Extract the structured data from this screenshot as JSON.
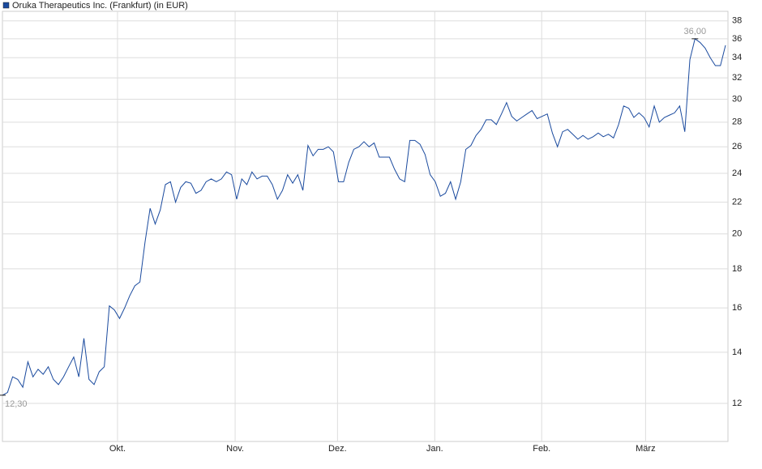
{
  "chart_data": {
    "type": "line",
    "series": [
      {
        "name": "Oruka Therapeutics Inc. (Frankfurt) (in EUR)",
        "color": "#1a4a9e",
        "values": [
          12.3,
          12.4,
          13.0,
          12.9,
          12.6,
          13.6,
          13.0,
          13.3,
          13.1,
          13.4,
          12.9,
          12.7,
          13.0,
          13.4,
          13.8,
          13.0,
          14.6,
          12.9,
          12.7,
          13.2,
          13.4,
          16.1,
          15.9,
          15.5,
          16.0,
          16.6,
          17.1,
          17.3,
          19.5,
          21.6,
          20.6,
          21.5,
          23.2,
          23.4,
          22.0,
          23.0,
          23.4,
          23.3,
          22.6,
          22.8,
          23.4,
          23.6,
          23.4,
          23.6,
          24.1,
          23.9,
          22.2,
          23.6,
          23.2,
          24.1,
          23.6,
          23.8,
          23.8,
          23.2,
          22.2,
          22.8,
          23.9,
          23.3,
          23.9,
          22.8,
          26.1,
          25.3,
          25.8,
          25.8,
          26.0,
          25.6,
          23.4,
          23.4,
          24.8,
          25.8,
          26.0,
          26.4,
          26.0,
          26.3,
          25.2,
          25.2,
          25.2,
          24.3,
          23.6,
          23.4,
          26.5,
          26.5,
          26.2,
          25.4,
          23.9,
          23.4,
          22.4,
          22.6,
          23.4,
          22.2,
          23.4,
          25.8,
          26.1,
          26.9,
          27.4,
          28.2,
          28.2,
          27.8,
          28.7,
          29.7,
          28.5,
          28.1,
          28.4,
          28.7,
          29.0,
          28.3,
          28.5,
          28.7,
          27.1,
          26.0,
          27.2,
          27.4,
          27.0,
          26.6,
          26.9,
          26.6,
          26.8,
          27.1,
          26.8,
          27.0,
          26.7,
          27.8,
          29.4,
          29.2,
          28.4,
          28.8,
          28.4,
          27.6,
          29.4,
          28.0,
          28.4,
          28.6,
          28.8,
          29.4,
          27.2,
          33.8,
          36.0,
          35.6,
          35.0,
          34.0,
          33.2,
          33.2,
          35.3
        ]
      }
    ],
    "xlim": [
      0,
      142
    ],
    "xticks": [
      {
        "value": 22.6,
        "label": "Okt."
      },
      {
        "value": 45.7,
        "label": "Nov."
      },
      {
        "value": 65.8,
        "label": "Dez."
      },
      {
        "value": 84.9,
        "label": "Jan."
      },
      {
        "value": 105.9,
        "label": "Feb."
      },
      {
        "value": 126.3,
        "label": "März"
      }
    ],
    "ylim": [
      10.7,
      39.1
    ],
    "yticks": [
      12,
      14,
      16,
      18,
      20,
      22,
      24,
      26,
      28,
      30,
      32,
      34,
      36,
      38
    ],
    "log_y": true,
    "grid": true,
    "legend": "top-left",
    "annotations": [
      {
        "x": 136,
        "value": 36.0,
        "label": "36,00"
      },
      {
        "x": 0,
        "value": 12.3,
        "label": "12,30"
      }
    ]
  }
}
